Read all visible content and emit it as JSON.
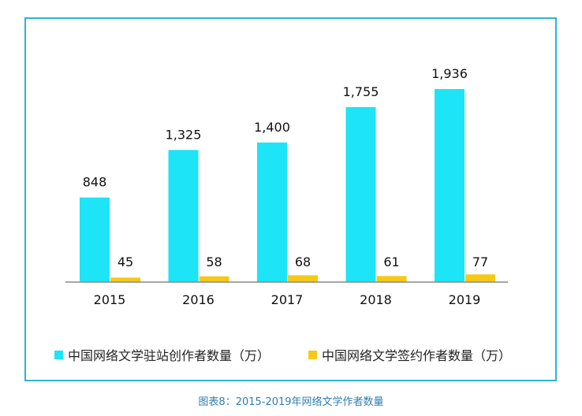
{
  "chart_data": {
    "type": "bar",
    "categories": [
      "2015",
      "2016",
      "2017",
      "2018",
      "2019"
    ],
    "series": [
      {
        "name": "中国网络文学驻站创作者数量（万）",
        "values": [
          848,
          1325,
          1400,
          1755,
          1936
        ],
        "labels": [
          "848",
          "1,325",
          "1,400",
          "1,755",
          "1,936"
        ],
        "color": "#1de4f7"
      },
      {
        "name": "中国网络文学签约作者数量（万）",
        "values": [
          45,
          58,
          68,
          61,
          77
        ],
        "labels": [
          "45",
          "58",
          "68",
          "61",
          "77"
        ],
        "color": "#f5c918"
      }
    ],
    "title": "",
    "xlabel": "",
    "ylabel": "",
    "ylim": [
      0,
      2000
    ],
    "grid": false,
    "legend": "bottom"
  },
  "caption": "图表8：2015-2019年网络文学作者数量",
  "frame_color": "#2bb5d4"
}
